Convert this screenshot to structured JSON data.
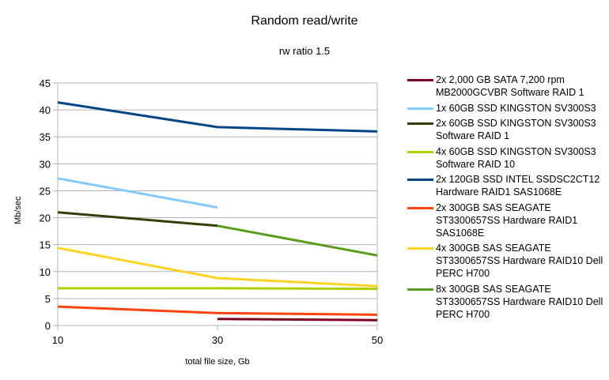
{
  "chart_data": {
    "type": "line",
    "title": "Random read/write",
    "subtitle": "rw ratio 1.5",
    "xlabel": "total file size, Gb",
    "ylabel": "Mb/sec",
    "x": [
      10,
      30,
      50
    ],
    "x_ticks": [
      "10",
      "30",
      "50"
    ],
    "y_ticks": [
      "0",
      "5",
      "10",
      "15",
      "20",
      "25",
      "30",
      "35",
      "40",
      "45"
    ],
    "ylim": [
      0,
      45
    ],
    "grid": true,
    "legend_position": "right",
    "series": [
      {
        "name": "2x 2,000 GB SATA 7,200 rpm MB2000GCVBR Software RAID 1",
        "color": "#7e0021",
        "values": [
          null,
          1.2,
          1.0
        ]
      },
      {
        "name": "1x 60GB SSD KINGSTON SV300S3",
        "color": "#83caff",
        "values": [
          27.3,
          21.9,
          null
        ]
      },
      {
        "name": "2x 60GB SSD KINGSTON SV300S3 Software RAID 1",
        "color": "#314004",
        "values": [
          21.0,
          18.5,
          null
        ]
      },
      {
        "name": "4x 60GB SSD KINGSTON SV300S3 Software RAID 10",
        "color": "#aecf00",
        "values": [
          6.9,
          6.9,
          6.8
        ]
      },
      {
        "name": "2x 120GB SSD INTEL SSDSC2CT12 Hardware RAID1 SAS1068E",
        "color": "#004586",
        "values": [
          41.4,
          36.8,
          36.0
        ]
      },
      {
        "name": "2x 300GB SAS SEAGATE ST3300657SS Hardware RAID1 SAS1068E",
        "color": "#ff420e",
        "values": [
          3.5,
          2.3,
          2.0
        ]
      },
      {
        "name": "4x 300GB SAS SEAGATE ST3300657SS Hardware RAID10 Dell PERC H700",
        "color": "#ffd320",
        "values": [
          14.4,
          8.8,
          7.3
        ]
      },
      {
        "name": "8x 300GB SAS SEAGATE ST3300657SS Hardware RAID10 Dell PERC H700",
        "color": "#579d1c",
        "values": [
          null,
          18.5,
          13.0
        ]
      }
    ]
  },
  "legend": {
    "items": [
      {
        "lines": "2x 2,000 GB SATA 7,200 rpm\nMB2000GCVBR Software RAID 1",
        "color": "#7e0021"
      },
      {
        "lines": "1x 60GB SSD KINGSTON SV300S3",
        "color": "#83caff"
      },
      {
        "lines": "2x 60GB SSD KINGSTON SV300S3\nSoftware RAID 1",
        "color": "#314004"
      },
      {
        "lines": "4x 60GB SSD KINGSTON SV300S3\nSoftware RAID 10",
        "color": "#aecf00"
      },
      {
        "lines": "2x 120GB SSD INTEL SSDSC2CT12\nHardware RAID1 SAS1068E",
        "color": "#004586"
      },
      {
        "lines": "2x 300GB SAS SEAGATE\nST3300657SS Hardware RAID1\nSAS1068E",
        "color": "#ff420e"
      },
      {
        "lines": "4x 300GB SAS SEAGATE\nST3300657SS Hardware RAID10 Dell\nPERC H700",
        "color": "#ffd320"
      },
      {
        "lines": "8x 300GB SAS SEAGATE\nST3300657SS Hardware RAID10 Dell\nPERC H700",
        "color": "#579d1c"
      }
    ]
  }
}
